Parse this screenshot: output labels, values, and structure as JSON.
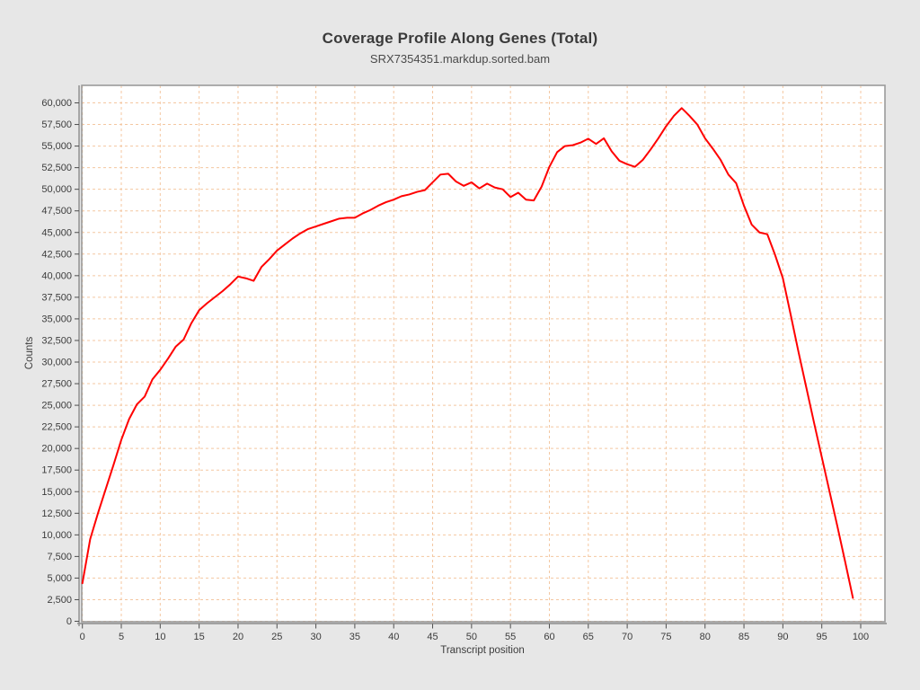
{
  "window": {
    "background_color": "#e7e7e7",
    "plot_background_color": "#ffffff",
    "grid_color": "#f4c7a1",
    "line_color": "#ff0000"
  },
  "header": {
    "title": "Coverage Profile Along Genes (Total)",
    "subtitle": "SRX7354351.markdup.sorted.bam"
  },
  "chart_data": {
    "type": "line",
    "title": "Coverage Profile Along Genes (Total)",
    "subtitle": "SRX7354351.markdup.sorted.bam",
    "xlabel": "Transcript position",
    "ylabel": "Counts",
    "xlim": [
      -0.2,
      103.2
    ],
    "ylim": [
      0,
      62000
    ],
    "grid": true,
    "legend_position": "none",
    "x_ticks": [
      0,
      5,
      10,
      15,
      20,
      25,
      30,
      35,
      40,
      45,
      50,
      55,
      60,
      65,
      70,
      75,
      80,
      85,
      90,
      95,
      100
    ],
    "y_ticks": [
      0,
      2500,
      5000,
      7500,
      10000,
      12500,
      15000,
      17500,
      20000,
      22500,
      25000,
      27500,
      30000,
      32500,
      35000,
      37500,
      40000,
      42500,
      45000,
      47500,
      50000,
      52500,
      55000,
      57500,
      60000
    ],
    "y_tick_labels": [
      "0",
      "2,500",
      "5,000",
      "7,500",
      "10,000",
      "12,500",
      "15,000",
      "17,500",
      "20,000",
      "22,500",
      "25,000",
      "27,500",
      "30,000",
      "32,500",
      "35,000",
      "37,500",
      "40,000",
      "42,500",
      "45,000",
      "47,500",
      "50,000",
      "52,500",
      "55,000",
      "57,500",
      "60,000"
    ],
    "series": [
      {
        "name": "SRX7354351.markdup.sorted.bam",
        "color": "#ff0000",
        "x": [
          0,
          1,
          2,
          3,
          4,
          5,
          6,
          7,
          8,
          9,
          10,
          11,
          12,
          13,
          14,
          15,
          16,
          17,
          18,
          19,
          20,
          21,
          22,
          23,
          24,
          25,
          26,
          27,
          28,
          29,
          30,
          31,
          32,
          33,
          34,
          35,
          36,
          37,
          38,
          39,
          40,
          41,
          42,
          43,
          44,
          45,
          46,
          47,
          48,
          49,
          50,
          51,
          52,
          53,
          54,
          55,
          56,
          57,
          58,
          59,
          60,
          61,
          62,
          63,
          64,
          65,
          66,
          67,
          68,
          69,
          70,
          71,
          72,
          73,
          74,
          75,
          76,
          77,
          78,
          79,
          80,
          81,
          82,
          83,
          84,
          85,
          86,
          87,
          88,
          89,
          90,
          91,
          92,
          93,
          94,
          95,
          96,
          97,
          98,
          99
        ],
        "values": [
          4400,
          9500,
          12500,
          15300,
          18100,
          21000,
          23400,
          25100,
          26000,
          28000,
          29100,
          30400,
          31800,
          32600,
          34500,
          36000,
          36800,
          37500,
          38200,
          39000,
          39900,
          39700,
          39400,
          41000,
          41900,
          42900,
          43600,
          44300,
          44900,
          45400,
          45700,
          46000,
          46300,
          46600,
          46700,
          46700,
          47200,
          47600,
          48100,
          48500,
          48800,
          49200,
          49400,
          49700,
          49900,
          50800,
          51700,
          51800,
          50900,
          50400,
          50800,
          50100,
          50650,
          50200,
          50000,
          49100,
          49600,
          48800,
          48700,
          50300,
          52600,
          54300,
          55000,
          55100,
          55400,
          55850,
          55250,
          55900,
          54400,
          53300,
          52900,
          52600,
          53400,
          54600,
          55900,
          57300,
          58500,
          59400,
          58500,
          57500,
          55900,
          54700,
          53400,
          51700,
          50700,
          48100,
          45900,
          45000,
          44800,
          42400,
          39700,
          35500,
          31200,
          27100,
          23000,
          19000,
          15000,
          11000,
          6900,
          2700
        ]
      }
    ]
  }
}
